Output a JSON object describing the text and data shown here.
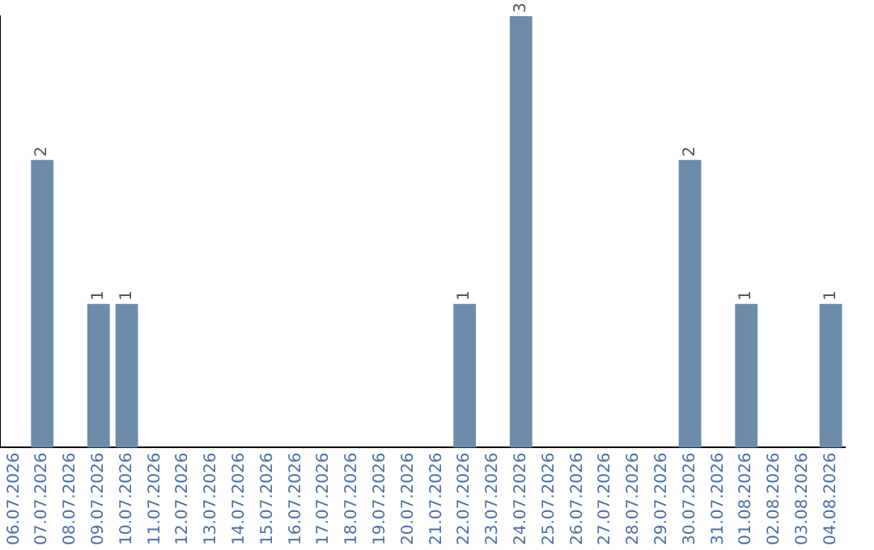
{
  "chart_data": {
    "type": "bar",
    "categories": [
      "06.07.2026",
      "07.07.2026",
      "08.07.2026",
      "09.07.2026",
      "10.07.2026",
      "11.07.2026",
      "12.07.2026",
      "13.07.2026",
      "14.07.2026",
      "15.07.2026",
      "16.07.2026",
      "17.07.2026",
      "18.07.2026",
      "19.07.2026",
      "20.07.2026",
      "21.07.2026",
      "22.07.2026",
      "23.07.2026",
      "24.07.2026",
      "25.07.2026",
      "26.07.2026",
      "27.07.2026",
      "28.07.2026",
      "29.07.2026",
      "30.07.2026",
      "31.07.2026",
      "01.08.2026",
      "02.08.2026",
      "03.08.2026",
      "04.08.2026"
    ],
    "values": [
      0,
      2,
      0,
      1,
      1,
      0,
      0,
      0,
      0,
      0,
      0,
      0,
      0,
      0,
      0,
      0,
      1,
      0,
      3,
      0,
      0,
      0,
      0,
      0,
      2,
      0,
      1,
      0,
      0,
      1
    ],
    "value_labels": [
      null,
      "2",
      null,
      "1",
      "1",
      null,
      null,
      null,
      null,
      null,
      null,
      null,
      null,
      null,
      null,
      null,
      "1",
      null,
      "3",
      null,
      null,
      null,
      null,
      null,
      "2",
      null,
      "1",
      null,
      null,
      "1"
    ],
    "color": "#6d8cab",
    "grid": false,
    "legend": false,
    "tick_labels": "x"
  }
}
